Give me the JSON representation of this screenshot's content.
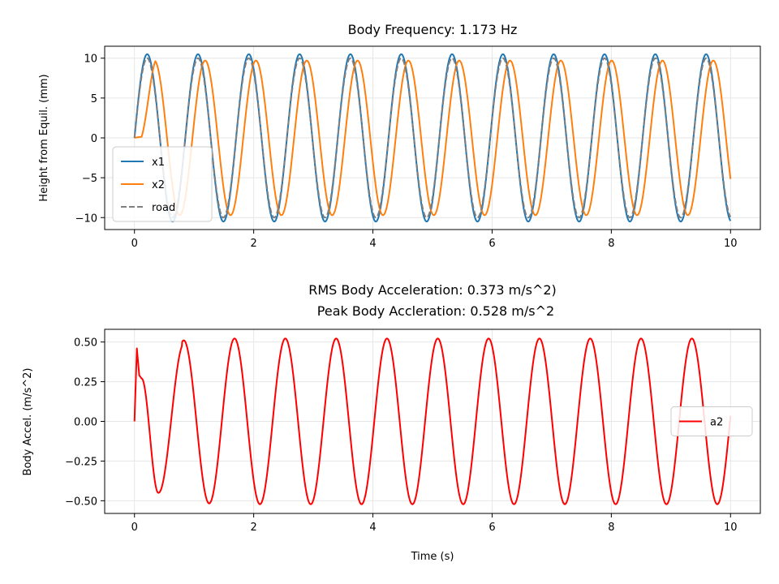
{
  "chart_data": [
    {
      "type": "line",
      "title": "Body Frequency: 1.173 Hz",
      "xlabel": "",
      "ylabel": "Height from Equil. (mm)",
      "xlim": [
        -0.5,
        10.5
      ],
      "ylim": [
        -11.5,
        11.5
      ],
      "xticks": [
        0,
        2,
        4,
        6,
        8,
        10
      ],
      "xtick_labels": [
        "0",
        "2",
        "4",
        "6",
        "8",
        "10"
      ],
      "yticks": [
        -10,
        -5,
        0,
        5,
        10
      ],
      "ytick_labels": [
        "−10",
        "−5",
        "0",
        "5",
        "10"
      ],
      "grid": true,
      "legend": "lower-left",
      "series": [
        {
          "name": "x1",
          "color": "#1f77b4",
          "style": "solid",
          "amplitude": 10.5,
          "frequency_hz": 1.173,
          "phase_delay_s": 0.0,
          "x": [
            0,
            10
          ]
        },
        {
          "name": "x2",
          "color": "#ff7f0e",
          "style": "solid",
          "amplitude": 9.7,
          "frequency_hz": 1.173,
          "phase_delay_s": 0.12,
          "x": [
            0,
            10
          ]
        },
        {
          "name": "road",
          "color": "#7f7f7f",
          "style": "dashed",
          "amplitude": 10.0,
          "frequency_hz": 1.173,
          "phase_delay_s": 0.0,
          "x": [
            0,
            10
          ]
        }
      ]
    },
    {
      "type": "line",
      "title": "RMS Body Acceleration: 0.373 m/s^2)",
      "subtitle": "Peak Body Accleration: 0.528 m/s^2",
      "xlabel": "Time (s)",
      "ylabel": "Body Accel. (m/s^2)",
      "xlim": [
        -0.5,
        10.5
      ],
      "ylim": [
        -0.58,
        0.58
      ],
      "xticks": [
        0,
        2,
        4,
        6,
        8,
        10
      ],
      "xtick_labels": [
        "0",
        "2",
        "4",
        "6",
        "8",
        "10"
      ],
      "yticks": [
        -0.5,
        -0.25,
        0.0,
        0.25,
        0.5
      ],
      "ytick_labels": [
        "−0.50",
        "−0.25",
        "0.00",
        "0.25",
        "0.50"
      ],
      "grid": true,
      "legend": "center-right",
      "series": [
        {
          "name": "a2",
          "color": "#ff0000",
          "style": "solid",
          "amplitude": 0.522,
          "frequency_hz": 1.173,
          "x": [
            0,
            10
          ],
          "startup": [
            [
              0.0,
              0.0
            ],
            [
              0.04,
              0.46
            ],
            [
              0.08,
              0.29
            ],
            [
              0.12,
              0.27
            ]
          ]
        }
      ]
    }
  ]
}
